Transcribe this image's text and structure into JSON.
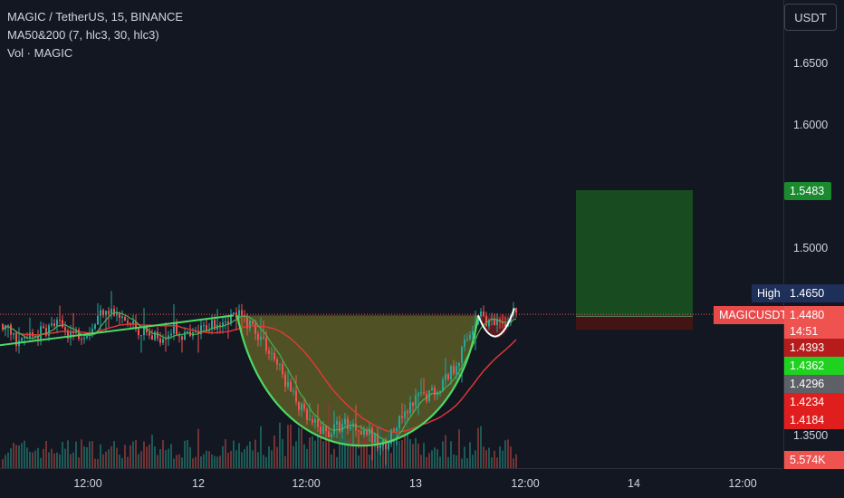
{
  "legend": {
    "symbol_line": "MAGIC / TetherUS, 15, BINANCE",
    "ma_line": "MA50&200 (7, hlc3, 30, hlc3)",
    "vol_line": "Vol · MAGIC"
  },
  "currency_button": "USDT",
  "y_axis": {
    "ticks": [
      "1.6500",
      "1.6000",
      "1.5000",
      "1.3500"
    ],
    "tick_values": [
      1.65,
      1.6,
      1.5,
      1.35
    ]
  },
  "x_axis": {
    "ticks": [
      "12:00",
      "12",
      "12:00",
      "13",
      "12:00",
      "14",
      "12:00"
    ]
  },
  "price_tags": {
    "target": "1.5483",
    "high_label": "High",
    "high_value": "1.4650",
    "symbol_label": "MAGICUSDT",
    "last_price": "1.4480",
    "countdown": "14:51",
    "p1": "1.4393",
    "p2": "1.4362",
    "p3": "1.4296",
    "p4": "1.4234",
    "p5": "1.4184",
    "volume": "5.574K"
  },
  "colors": {
    "background": "#131722",
    "up": "#26a69a",
    "down": "#ef5350",
    "ma_fast": "#4caf50",
    "ma_slow": "#e53935",
    "pattern_fill": "#7a7a2a",
    "pattern_line": "#4cd964",
    "target_green": "#1b5e20",
    "stop_red": "#4a1414"
  },
  "chart_data": {
    "type": "candlestick",
    "symbol": "MAGIC / TetherUS",
    "interval": "15",
    "exchange": "BINANCE",
    "ylim": [
      1.33,
      1.68
    ],
    "y_ticks": [
      1.65,
      1.6,
      1.55,
      1.5,
      1.45,
      1.4,
      1.35
    ],
    "last_price": 1.448,
    "high": 1.465,
    "target": 1.5483,
    "entry": 1.4462,
    "stop": 1.4355,
    "cup_rim": 1.447,
    "cup_bottom": 1.336,
    "close_path": [
      [
        0,
        1.44
      ],
      [
        20,
        1.425
      ],
      [
        40,
        1.432
      ],
      [
        60,
        1.44
      ],
      [
        80,
        1.432
      ],
      [
        100,
        1.436
      ],
      [
        115,
        1.455
      ],
      [
        130,
        1.445
      ],
      [
        150,
        1.437
      ],
      [
        170,
        1.428
      ],
      [
        190,
        1.436
      ],
      [
        210,
        1.428
      ],
      [
        230,
        1.44
      ],
      [
        250,
        1.446
      ],
      [
        262,
        1.447
      ],
      [
        280,
        1.437
      ],
      [
        300,
        1.415
      ],
      [
        320,
        1.385
      ],
      [
        340,
        1.36
      ],
      [
        360,
        1.352
      ],
      [
        380,
        1.36
      ],
      [
        400,
        1.356
      ],
      [
        420,
        1.34
      ],
      [
        440,
        1.36
      ],
      [
        460,
        1.38
      ],
      [
        480,
        1.386
      ],
      [
        500,
        1.405
      ],
      [
        515,
        1.428
      ],
      [
        528,
        1.45
      ],
      [
        540,
        1.44
      ],
      [
        552,
        1.437
      ],
      [
        568,
        1.451
      ]
    ]
  }
}
